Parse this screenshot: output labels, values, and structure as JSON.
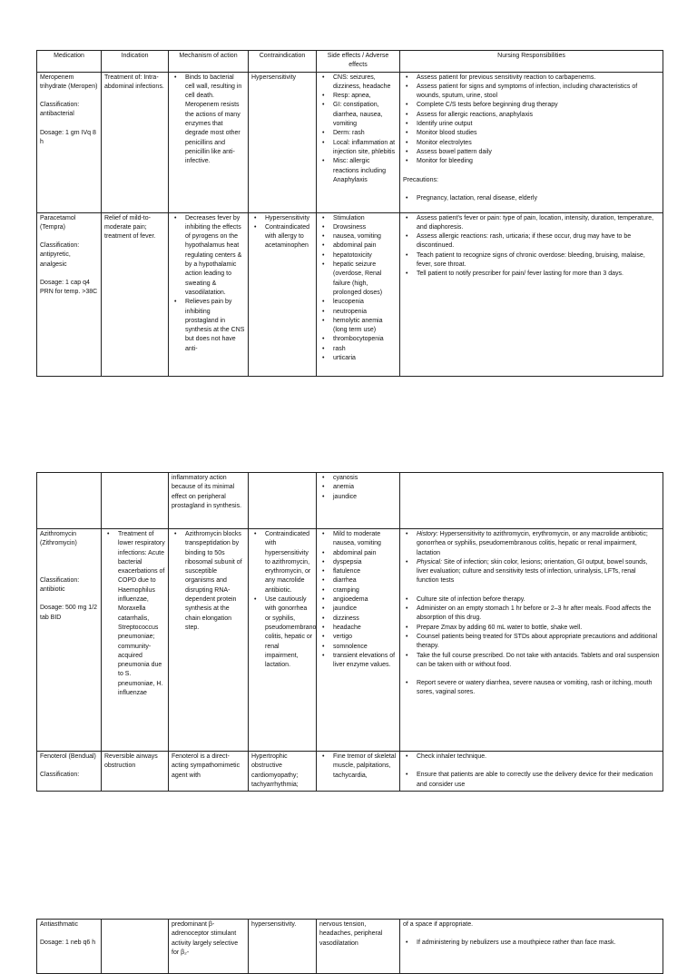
{
  "tables": [
    {
      "rows": [
        {
          "header": true,
          "cells": [
            [
              {
                "p": "Medication"
              }
            ],
            [
              {
                "p": "Indication"
              }
            ],
            [
              {
                "p": "Mechanism of action"
              }
            ],
            [
              {
                "p": "Contraindication"
              }
            ],
            [
              {
                "p": "Side effects / Adverse effects"
              }
            ],
            [
              {
                "p": "Nursing Responsibilities"
              }
            ]
          ]
        },
        {
          "cells": [
            [
              {
                "p": "Meropenem trihydrate (Meropen)"
              },
              {
                "p": "Classification: antibacterial"
              },
              {
                "p": "Dosage: 1 gm IVq 8 h"
              }
            ],
            [
              {
                "p": "Treatment of: Intra-abdominal infections."
              }
            ],
            [
              {
                "ul": [
                  "Binds to bacterial cell wall, resulting in cell death. Meropenem resists the actions of many enzymes that degrade most other penicillins and penicillin like anti-infective."
                ]
              }
            ],
            [
              {
                "p": "Hypersensitivity"
              }
            ],
            [
              {
                "ul": [
                  "CNS: seizures, dizziness, headache",
                  "Resp: apnea,",
                  "GI: constipation, diarrhea, nausea, vomiting",
                  "Derm: rash",
                  "Local: inflammation at injection site, phlebitis",
                  "Misc: allergic reactions including Anaphylaxis"
                ]
              }
            ],
            [
              {
                "ul": [
                  "Assess patient for previous sensitivity reaction to carbapenems.",
                  "Assess patient for signs and symptoms of infection, including characteristics of wounds, sputum, urine, stool",
                  "Complete C/S tests before beginning drug therapy",
                  "Assess for allergic reactions, anaphylaxis",
                  "Identify urine output",
                  "Monitor blood studies",
                  "Monitor electrolytes",
                  "Assess bowel pattern daily",
                  "Monitor for bleeding"
                ]
              },
              {
                "p": "Precautions:"
              },
              {
                "ul": [
                  "Pregnancy, lactation, renal disease, elderly"
                ]
              }
            ]
          ]
        },
        {
          "cells": [
            [
              {
                "p": "Paracetamol (Tempra)"
              },
              {
                "p": "Classification: antipyretic, analgesic"
              },
              {
                "p": "Dosage: 1 cap q4 PRN for temp. >38C"
              }
            ],
            [
              {
                "p": "Relief of mild-to-moderate pain; treatment of fever."
              }
            ],
            [
              {
                "ul": [
                  "Decreases fever by inhibiting the effects of pyrogens on the hypothalamus heat regulating centers & by a hypothalamic action leading to sweating & vasodilatation.",
                  "Relieves pain by inhibiting prostagland in synthesis at the CNS but does not have anti-"
                ]
              }
            ],
            [
              {
                "ul": [
                  "Hypersensitivity",
                  "Contraindicated with allergy to acetaminophen"
                ]
              }
            ],
            [
              {
                "ul": [
                  "Stimulation",
                  "Drowsiness",
                  "nausea, vomiting",
                  "abdominal pain",
                  "hepatotoxicity",
                  "hepatic seizure (overdose, Renal failure (high, prolonged doses)",
                  "leucopenia",
                  "neutropenia",
                  "hemolytic anemia (long term use)",
                  "thrombocytopenia",
                  "rash",
                  "urticaria"
                ]
              }
            ],
            [
              {
                "ul": [
                  "Assess patient's fever or pain: type of pain, location, intensity, duration, temperature, and diaphoresis.",
                  "Assess allergic reactions: rash, urticaria; if these occur, drug may have to be discontinued.",
                  "Teach patient to recognize signs of chronic overdose: bleeding, bruising, malaise, fever, sore throat.",
                  "Tell patient to notify prescriber for pain/ fever lasting for more than 3 days."
                ]
              }
            ]
          ]
        }
      ]
    },
    {
      "rows": [
        {
          "cells": [
            [],
            [],
            [
              {
                "p": "inflammatory action because of its minimal effect on peripheral prostagland in synthesis."
              }
            ],
            [],
            [
              {
                "ul": [
                  "cyanosis",
                  "anemia",
                  "jaundice"
                ]
              }
            ],
            []
          ]
        },
        {
          "cells": [
            [
              {
                "p": "Azithromycin (Zithromycin)"
              },
              {
                "p": " "
              },
              {
                "p": "Classification: antibiotic"
              },
              {
                "p": "Dosage: 500 mg 1/2 tab BID"
              }
            ],
            [
              {
                "ul": [
                  "Treatment of lower respiratory infections: Acute bacterial exacerbations of COPD due to Haemophilus influenzae, Moraxella catarrhalis, Streptococcus pneumoniae; community-acquired pneumonia due to S. pneumoniae, H. influenzae"
                ]
              }
            ],
            [
              {
                "ul": [
                  "Azithromycin blocks transpeptidation by binding to 50s ribosomal subunit of susceptible organisms and disrupting RNA-dependent protein synthesis at the chain elongation step."
                ]
              }
            ],
            [
              {
                "ul": [
                  "Contraindicated with hypersensitivity to azithromycin, erythromycin, or any macrolide antibiotic.",
                  "Use cautiously with gonorrhea or syphilis, pseudomembranous colitis, hepatic or renal impairment, lactation."
                ]
              }
            ],
            [
              {
                "ul": [
                  "Mild to moderate nausea, vomiting",
                  "abdominal pain",
                  "dyspepsia",
                  "flatulence",
                  "diarrhea",
                  "cramping",
                  "angioedema",
                  "jaundice",
                  "dizziness",
                  "headache",
                  "vertigo",
                  "somnolence",
                  "transient elevations of liver enzyme values."
                ]
              }
            ],
            [
              {
                "ul": [
                  {
                    "em": "History:",
                    "t": " Hypersensitivity to azithromycin, erythromycin, or any macrolide antibiotic; gonorrhea or syphilis, pseudomembranous colitis, hepatic or renal impairment, lactation"
                  },
                  {
                    "em": "Physical:",
                    "t": " Site of infection; skin color, lesions; orientation, GI output, bowel sounds, liver evaluation; culture and sensitivity tests of infection, urinalysis, LFTs, renal function tests"
                  }
                ]
              },
              {
                "ul": [
                  "Culture site of infection before therapy.",
                  "Administer on an empty stomach 1 hr before or 2–3 hr after meals. Food affects the absorption of this drug.",
                  "Prepare Zmax by adding 60 mL water to bottle, shake well.",
                  "Counsel patients being treated for STDs about appropriate precautions and additional therapy.",
                  "Take the full course prescribed. Do not take with antacids. Tablets and oral suspension can be taken with or without food."
                ]
              },
              {
                "ul": [
                  "Report severe or watery diarrhea, severe nausea or vomiting, rash or itching, mouth sores, vaginal sores."
                ]
              }
            ]
          ]
        },
        {
          "cells": [
            [
              {
                "p": "Fenoterol (Bendual)"
              },
              {
                "p": "Classification:"
              }
            ],
            [
              {
                "p": "Reversible airways obstruction"
              }
            ],
            [
              {
                "p": "Fenoterol is a direct-acting sympathomimetic agent with"
              }
            ],
            [
              {
                "p": "Hypertrophic obstructive cardiomyopathy; tachyarrhythmia;"
              }
            ],
            [
              {
                "ul": [
                  "Fine tremor of skeletal muscle, palpitations, tachycardia,"
                ]
              }
            ],
            [
              {
                "ul": [
                  "Check inhaler technique."
                ]
              },
              {
                "ul": [
                  "Ensure that patients are able to correctly use the delivery device for their medication and consider use"
                ]
              }
            ]
          ]
        }
      ]
    },
    {
      "rows": [
        {
          "cells": [
            [
              {
                "p": "Antiasthmatic"
              },
              {
                "p": "Dosage: 1 neb q6 h"
              }
            ],
            [],
            [
              {
                "p": "predominant β-adrenoceptor stimulant activity largely selective for β₂-"
              }
            ],
            [
              {
                "p": "hypersensitivity."
              }
            ],
            [
              {
                "p": "nervous tension, headaches, peripheral vasodilatation"
              }
            ],
            [
              {
                "p": "of a space if appropriate."
              },
              {
                "ul": [
                  "If administering by nebulizers use a mouthpiece rather than face mask."
                ]
              }
            ]
          ]
        }
      ]
    }
  ]
}
